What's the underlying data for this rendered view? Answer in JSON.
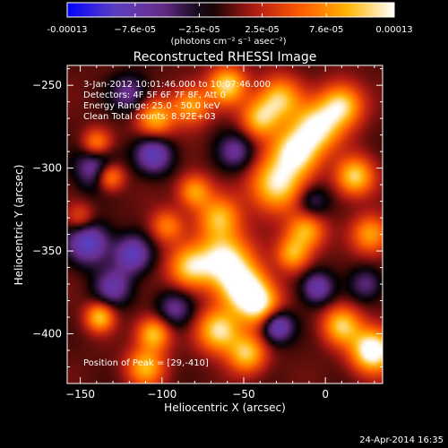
{
  "chart_data": {
    "type": "heatmap",
    "title": "Reconstructed RHESSI Image",
    "xlabel": "Heliocentric X (arcsec)",
    "ylabel": "Heliocentric Y (arcsec)",
    "xlim": [
      -158,
      35
    ],
    "ylim": [
      -430,
      -238
    ],
    "x_ticks": [
      -150,
      -100,
      -50,
      0
    ],
    "y_ticks": [
      -250,
      -300,
      -350,
      -400
    ],
    "colorbar": {
      "min": -0.00013,
      "max": 0.00013,
      "ticks": [
        -0.00013,
        -7.6e-05,
        -2.5e-05,
        2.5e-05,
        7.6e-05,
        0.00013
      ],
      "tick_labels": [
        "-0.00013",
        "−7.6e-05",
        "−2.5e-05",
        "2.5e-05",
        "7.6e-05",
        "0.00013"
      ],
      "unit_label": "(photons cm⁻² s⁻¹ asec⁻²)",
      "colormap": [
        "#0000ff",
        "#5b3fc2",
        "#6a2d8e",
        "#000000",
        "#b01a14",
        "#ff5b00",
        "#ffb400",
        "#ffffff"
      ]
    },
    "annotations": [
      "3-Jan-2012 10:01:46.000 to 10:07:46.000",
      "Detectors: 4F 5F 6F 7F 8F, Att 0",
      "Energy Range: 25.0 - 50.0 keV",
      "Clean    Total counts: 8.92E+03"
    ],
    "peak_label": "Position of Peak = [29,-410]",
    "peak_position": [
      29,
      -410
    ],
    "features": [
      {
        "x": -62,
        "y": -355,
        "amp": 1.5,
        "r": 11
      },
      {
        "x": -50,
        "y": -372,
        "amp": 1.5,
        "r": 10
      },
      {
        "x": -40,
        "y": -383,
        "amp": 1.3,
        "r": 9
      },
      {
        "x": -65,
        "y": -330,
        "amp": 1.1,
        "r": 9
      },
      {
        "x": -83,
        "y": -360,
        "amp": 1.2,
        "r": 9
      },
      {
        "x": -30,
        "y": -310,
        "amp": 1.4,
        "r": 11
      },
      {
        "x": -18,
        "y": -290,
        "amp": 1.5,
        "r": 10
      },
      {
        "x": -5,
        "y": -275,
        "amp": 1.4,
        "r": 10
      },
      {
        "x": 10,
        "y": -262,
        "amp": 1.3,
        "r": 9
      },
      {
        "x": -28,
        "y": -258,
        "amp": 1.2,
        "r": 9
      },
      {
        "x": -60,
        "y": -250,
        "amp": 1.3,
        "r": 8
      },
      {
        "x": -40,
        "y": -270,
        "amp": 1.1,
        "r": 8
      },
      {
        "x": -82,
        "y": -262,
        "amp": 1.0,
        "r": 8
      },
      {
        "x": -104,
        "y": -270,
        "amp": 1.1,
        "r": 8
      },
      {
        "x": -132,
        "y": -305,
        "amp": 1.2,
        "r": 6
      },
      {
        "x": -80,
        "y": -314,
        "amp": 1.0,
        "r": 7
      },
      {
        "x": -97,
        "y": -335,
        "amp": 0.8,
        "r": 7
      },
      {
        "x": 18,
        "y": -305,
        "amp": 1.3,
        "r": 8
      },
      {
        "x": 28,
        "y": -340,
        "amp": 1.0,
        "r": 8
      },
      {
        "x": -12,
        "y": -338,
        "amp": 1.1,
        "r": 8
      },
      {
        "x": -20,
        "y": -352,
        "amp": 1.0,
        "r": 7
      },
      {
        "x": -138,
        "y": -390,
        "amp": 1.2,
        "r": 6
      },
      {
        "x": -105,
        "y": -400,
        "amp": 1.2,
        "r": 7
      },
      {
        "x": -110,
        "y": -420,
        "amp": 1.1,
        "r": 8
      },
      {
        "x": -65,
        "y": -398,
        "amp": 1.4,
        "r": 9
      },
      {
        "x": -48,
        "y": -412,
        "amp": 1.2,
        "r": 8
      },
      {
        "x": 29,
        "y": -410,
        "amp": 1.8,
        "r": 9
      },
      {
        "x": 10,
        "y": -395,
        "amp": 1.2,
        "r": 8
      },
      {
        "x": -150,
        "y": -330,
        "amp": 0.6,
        "r": 6
      },
      {
        "x": -140,
        "y": -285,
        "amp": 0.9,
        "r": 6
      },
      {
        "x": -140,
        "y": -300,
        "amp": -0.9,
        "r": 9
      },
      {
        "x": -105,
        "y": -292,
        "amp": -1.0,
        "r": 8
      },
      {
        "x": -120,
        "y": -255,
        "amp": -0.7,
        "r": 8
      },
      {
        "x": -145,
        "y": -345,
        "amp": -1.1,
        "r": 9
      },
      {
        "x": -118,
        "y": -352,
        "amp": -1.0,
        "r": 8
      },
      {
        "x": -130,
        "y": -372,
        "amp": -0.8,
        "r": 8
      },
      {
        "x": -92,
        "y": -385,
        "amp": -0.7,
        "r": 8
      },
      {
        "x": -30,
        "y": -395,
        "amp": -1.2,
        "r": 7
      },
      {
        "x": -5,
        "y": -372,
        "amp": -0.9,
        "r": 7
      },
      {
        "x": 25,
        "y": -370,
        "amp": -0.6,
        "r": 7
      },
      {
        "x": -55,
        "y": -290,
        "amp": -0.7,
        "r": 8
      },
      {
        "x": -8,
        "y": -320,
        "amp": -0.6,
        "r": 7
      }
    ]
  },
  "footer": {
    "timestamp": "24-Apr-2014 16:35"
  }
}
